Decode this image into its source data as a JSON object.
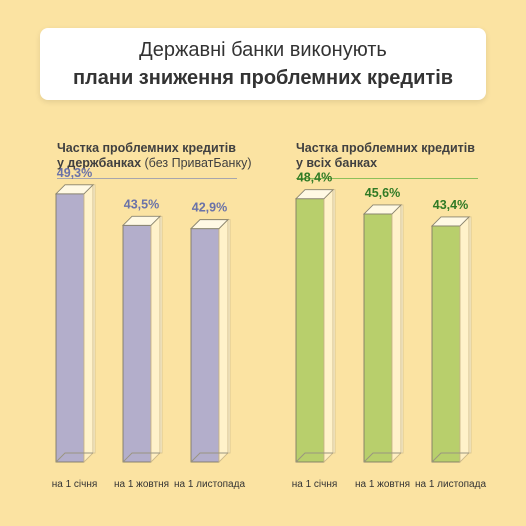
{
  "title": {
    "line1": "Державні банки виконують",
    "line2": "плани зниження проблемних кредитів"
  },
  "chart_data": [
    {
      "type": "bar",
      "title_bold_line1": "Частка проблемних кредитів",
      "title_bold_line2": "у держбанках",
      "title_normal": "(без ПриватБанку)",
      "categories": [
        "на 1 січня",
        "на 1 жовтня",
        "на 1 листопада"
      ],
      "values": [
        49.3,
        43.5,
        42.9
      ],
      "labels": [
        "49,3%",
        "43,5%",
        "42,9%"
      ],
      "ylim": [
        0,
        50
      ],
      "bar_color": "#b3aecb",
      "label_color": "#6a72a8",
      "rule_color": "#a7a6ad"
    },
    {
      "type": "bar",
      "title_bold_line1": "Частка проблемних кредитів",
      "title_bold_line2": "у всіх банках",
      "title_normal": "",
      "categories": [
        "на 1 січня",
        "на 1 жовтня",
        "на 1 листопада"
      ],
      "values": [
        48.4,
        45.6,
        43.4
      ],
      "labels": [
        "48,4%",
        "45,6%",
        "43,4%"
      ],
      "ylim": [
        0,
        50
      ],
      "bar_color": "#b8cf6c",
      "label_color": "#2f7a25",
      "rule_color": "#8cbf5a"
    }
  ]
}
